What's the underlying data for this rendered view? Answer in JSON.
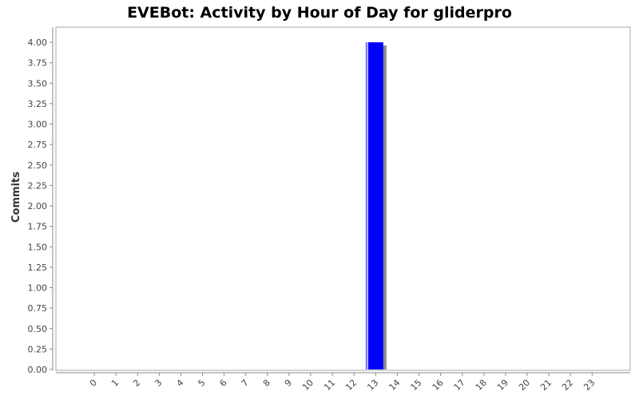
{
  "chart_data": {
    "type": "bar",
    "title": "EVEBot: Activity by Hour of Day for gliderpro",
    "xlabel": "",
    "ylabel": "Commits",
    "categories": [
      "0",
      "1",
      "2",
      "3",
      "4",
      "5",
      "6",
      "7",
      "8",
      "9",
      "10",
      "11",
      "12",
      "13",
      "14",
      "15",
      "16",
      "17",
      "18",
      "19",
      "20",
      "21",
      "22",
      "23"
    ],
    "values": [
      0,
      0,
      0,
      0,
      0,
      0,
      0,
      0,
      0,
      0,
      0,
      0,
      0,
      4,
      0,
      0,
      0,
      0,
      0,
      0,
      0,
      0,
      0,
      0
    ],
    "ylim": [
      0,
      4.0
    ],
    "yticks": [
      "0.00",
      "0.25",
      "0.50",
      "0.75",
      "1.00",
      "1.25",
      "1.50",
      "1.75",
      "2.00",
      "2.25",
      "2.50",
      "2.75",
      "3.00",
      "3.25",
      "3.50",
      "3.75",
      "4.00"
    ],
    "grid": false,
    "legend": "none",
    "colors": {
      "bar": "#0000ff",
      "bar_shadow": "#888888",
      "axis": "#888888",
      "background": "#ffffff"
    }
  }
}
